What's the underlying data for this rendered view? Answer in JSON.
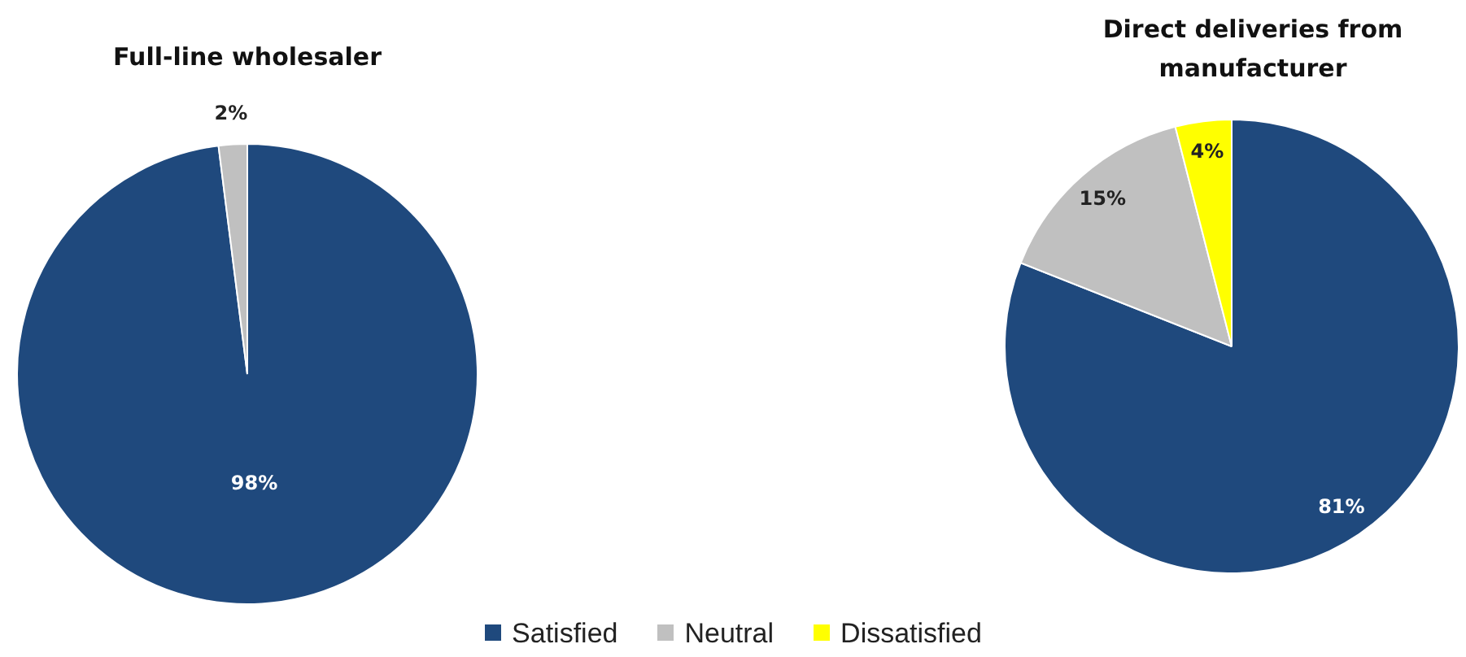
{
  "chart_data": {
    "type": "pie",
    "categories": [
      "Satisfied",
      "Neutral",
      "Dissatisfied"
    ],
    "colors": [
      "#1f497d",
      "#c0c0c0",
      "#ffff00"
    ],
    "legend": "bottom",
    "series": [
      {
        "name": "Full-line wholesaler",
        "values": [
          98,
          2,
          null
        ],
        "value_labels": [
          "98%",
          "2%",
          null
        ]
      },
      {
        "name": "Direct deliveries from manufacturer",
        "values": [
          81,
          15,
          4
        ],
        "value_labels": [
          "81%",
          "15%",
          "4%"
        ]
      }
    ]
  }
}
